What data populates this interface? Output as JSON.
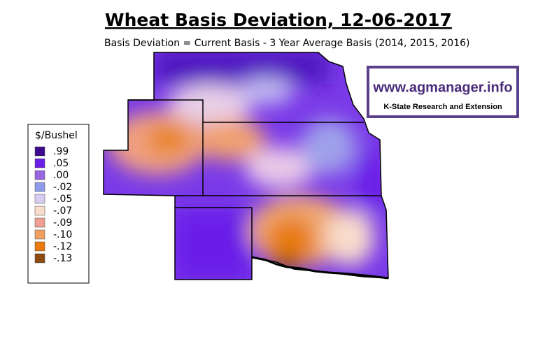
{
  "title": "Wheat Basis Deviation, 12-06-2017",
  "subtitle": "Basis Deviation = Current Basis - 3 Year Average Basis (2014, 2015, 2016)",
  "logo": {
    "url": "www.agmanager.info",
    "org": "K-State Research and Extension"
  },
  "legend": {
    "title": "$/Bushel",
    "items": [
      {
        "label": ".99",
        "color": "#3d0a8e"
      },
      {
        "label": ".05",
        "color": "#6a1ee8"
      },
      {
        "label": ".00",
        "color": "#9966e0"
      },
      {
        "label": "-.02",
        "color": "#8f9ae8"
      },
      {
        "label": "-.05",
        "color": "#d8ccf2"
      },
      {
        "label": "-.07",
        "color": "#f8dccc"
      },
      {
        "label": "-.09",
        "color": "#f0a090"
      },
      {
        "label": "-.10",
        "color": "#f0a060"
      },
      {
        "label": "-.12",
        "color": "#e87a10"
      },
      {
        "label": "-.13",
        "color": "#8a4a10"
      }
    ]
  }
}
